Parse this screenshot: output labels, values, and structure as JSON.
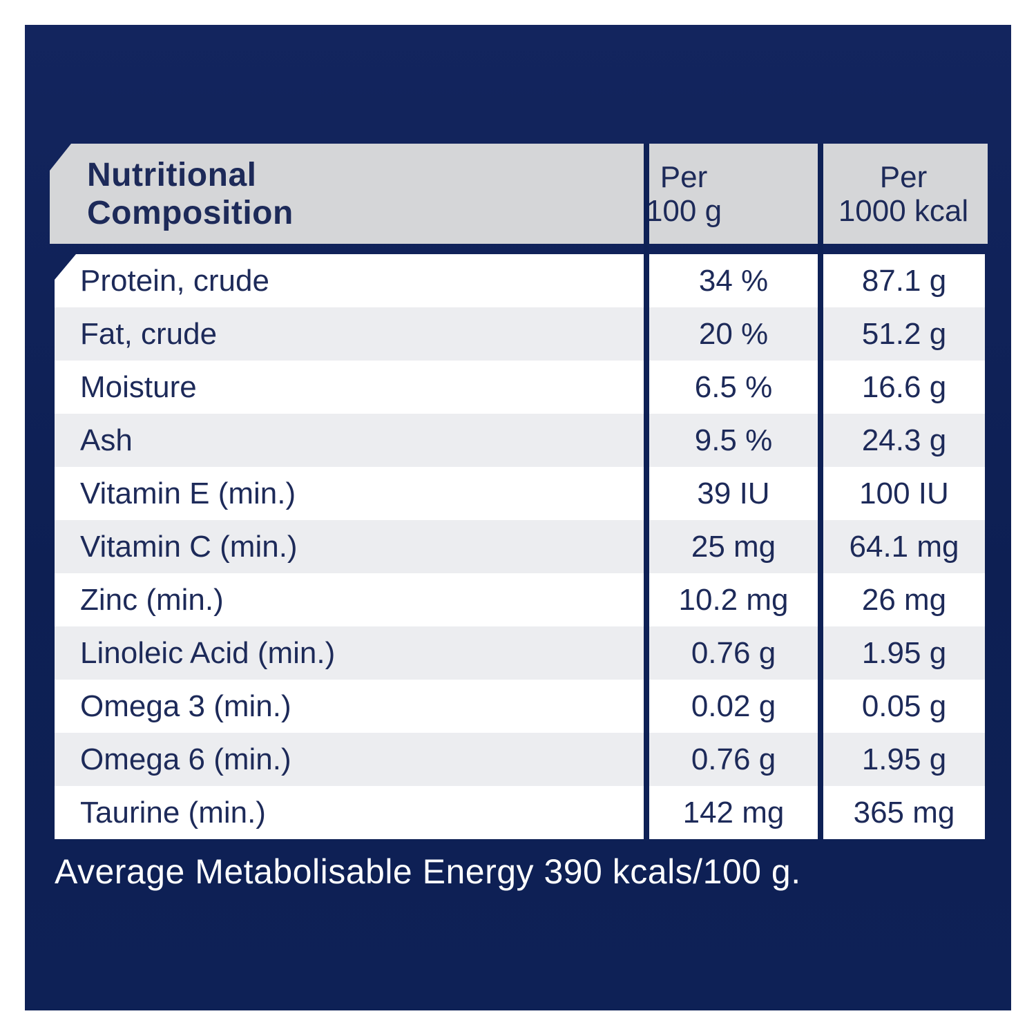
{
  "header": {
    "title_line1": "Nutritional",
    "title_line2": "Composition",
    "col_per_100g": {
      "line1": "Per",
      "line2": "100 g"
    },
    "col_per_1000kcal": {
      "line1": "Per",
      "line2": "1000 kcal"
    }
  },
  "table": {
    "rows": [
      {
        "label": "Protein, crude",
        "per_100g": "34 %",
        "per_1000kcal": "87.1 g"
      },
      {
        "label": "Fat, crude",
        "per_100g": "20 %",
        "per_1000kcal": "51.2 g"
      },
      {
        "label": "Moisture",
        "per_100g": "6.5 %",
        "per_1000kcal": "16.6 g"
      },
      {
        "label": "Ash",
        "per_100g": "9.5 %",
        "per_1000kcal": "24.3 g"
      },
      {
        "label": "Vitamin E (min.)",
        "per_100g": "39 IU",
        "per_1000kcal": "100 IU"
      },
      {
        "label": "Vitamin C (min.)",
        "per_100g": "25 mg",
        "per_1000kcal": "64.1 mg"
      },
      {
        "label": "Zinc (min.)",
        "per_100g": "10.2 mg",
        "per_1000kcal": "26 mg"
      },
      {
        "label": "Linoleic Acid (min.)",
        "per_100g": "0.76 g",
        "per_1000kcal": "1.95 g"
      },
      {
        "label": "Omega 3 (min.)",
        "per_100g": "0.02 g",
        "per_1000kcal": "0.05 g"
      },
      {
        "label": "Omega 6 (min.)",
        "per_100g": "0.76 g",
        "per_1000kcal": "1.95 g"
      },
      {
        "label": "Taurine (min.)",
        "per_100g": "142 mg",
        "per_1000kcal": "365 mg"
      }
    ]
  },
  "footer": {
    "text": "Average Metabolisable Energy 390 kcals/100 g."
  },
  "colors": {
    "panel_navy": "#0E2156",
    "header_gray": "#D5D6D8",
    "alt_row_gray": "#ECEDF0",
    "row_white": "#FFFFFF",
    "text_navy": "#1D2A59",
    "footer_text": "#FFFFFF"
  }
}
